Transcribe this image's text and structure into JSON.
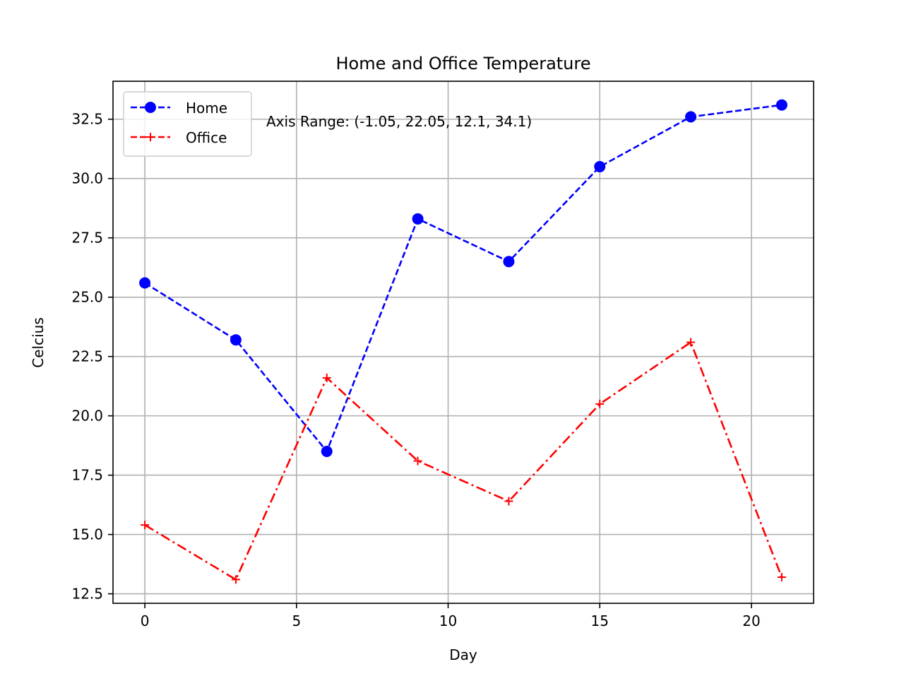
{
  "chart_data": {
    "type": "line",
    "title": "Home and Office Temperature",
    "xlabel": "Day",
    "ylabel": "Celcius",
    "xlim": [
      -1.05,
      22.05
    ],
    "ylim": [
      12.1,
      34.1
    ],
    "xticks": [
      0,
      5,
      10,
      15,
      20
    ],
    "xtick_labels": [
      "0",
      "5",
      "10",
      "15",
      "20"
    ],
    "yticks": [
      12.5,
      15.0,
      17.5,
      20.0,
      22.5,
      25.0,
      27.5,
      30.0,
      32.5
    ],
    "ytick_labels": [
      "12.5",
      "15.0",
      "17.5",
      "20.0",
      "22.5",
      "25.0",
      "27.5",
      "30.0",
      "32.5"
    ],
    "grid": true,
    "legend_position": "top-left",
    "annotation": "Axis Range: (-1.05, 22.05, 12.1, 34.1)",
    "x": [
      0,
      3,
      6,
      9,
      12,
      15,
      18,
      21
    ],
    "series": [
      {
        "name": "Home",
        "values": [
          25.6,
          23.2,
          18.5,
          28.3,
          26.5,
          30.5,
          32.6,
          33.1
        ],
        "color": "#0000ff",
        "line_style": "dashed",
        "marker": "circle"
      },
      {
        "name": "Office",
        "values": [
          15.4,
          13.1,
          21.6,
          18.1,
          16.4,
          20.5,
          23.1,
          13.2
        ],
        "color": "#ff0000",
        "line_style": "dashdot",
        "marker": "plus"
      }
    ]
  }
}
